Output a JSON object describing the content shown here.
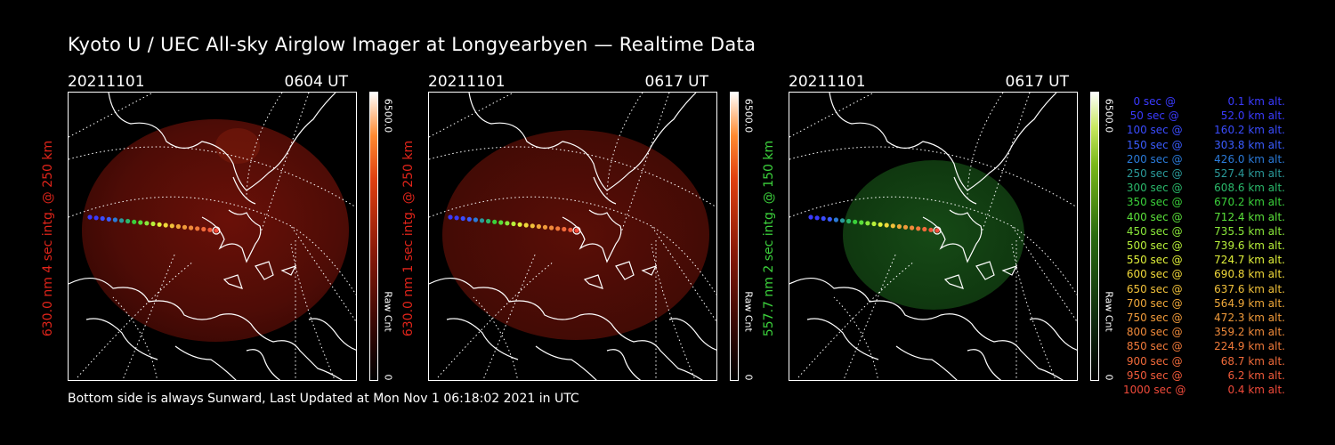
{
  "title": "Kyoto U / UEC All-sky Airglow Imager at Longyearbyen — Realtime Data",
  "footer": "Bottom side is always Sunward, Last Updated at Mon Nov  1 06:18:02 2021 in UTC",
  "colors": {
    "red_label": "#e0241a",
    "green_label": "#3cd23c"
  },
  "panels": [
    {
      "date": "20211101",
      "time": "0604 UT",
      "ylabel": "630.0 nm 4 sec intg. @ 250 km",
      "cb_max": "6500.0",
      "cb_unit": "Raw Cnt",
      "cb_min": "0",
      "channel": "red"
    },
    {
      "date": "20211101",
      "time": "0617 UT",
      "ylabel": "630.0 nm 1 sec intg. @ 250 km",
      "cb_max": "6500.0",
      "cb_unit": "Raw Cnt",
      "cb_min": "0",
      "channel": "red"
    },
    {
      "date": "20211101",
      "time": "0617 UT",
      "ylabel": "557.7 nm 2 sec intg. @ 150 km",
      "cb_max": "6500.0",
      "cb_unit": "Raw Cnt",
      "cb_min": "0",
      "channel": "green"
    }
  ],
  "legend": [
    {
      "t": "   0 sec @",
      "alt": "  0.1 km alt.",
      "color": "#3a3aff"
    },
    {
      "t": "  50 sec @",
      "alt": " 52.0 km alt.",
      "color": "#3a3aff"
    },
    {
      "t": " 100 sec @",
      "alt": "160.2 km alt.",
      "color": "#3a4cff"
    },
    {
      "t": " 150 sec @",
      "alt": "303.8 km alt.",
      "color": "#3a5cff"
    },
    {
      "t": " 200 sec @",
      "alt": "426.0 km alt.",
      "color": "#2a7ad8"
    },
    {
      "t": " 250 sec @",
      "alt": "527.4 km alt.",
      "color": "#2a9a9a"
    },
    {
      "t": " 300 sec @",
      "alt": "608.6 km alt.",
      "color": "#2ab86a"
    },
    {
      "t": " 350 sec @",
      "alt": "670.2 km alt.",
      "color": "#3ad03a"
    },
    {
      "t": " 400 sec @",
      "alt": "712.4 km alt.",
      "color": "#5ae03a"
    },
    {
      "t": " 450 sec @",
      "alt": "735.5 km alt.",
      "color": "#8ae83a"
    },
    {
      "t": " 500 sec @",
      "alt": "739.6 km alt.",
      "color": "#b8f03a"
    },
    {
      "t": " 550 sec @",
      "alt": "724.7 km alt.",
      "color": "#e0f03a"
    },
    {
      "t": " 600 sec @",
      "alt": "690.8 km alt.",
      "color": "#f0d83a"
    },
    {
      "t": " 650 sec @",
      "alt": "637.6 km alt.",
      "color": "#f0c03a"
    },
    {
      "t": " 700 sec @",
      "alt": "564.9 km alt.",
      "color": "#f0a83a"
    },
    {
      "t": " 750 sec @",
      "alt": "472.3 km alt.",
      "color": "#f09a3a"
    },
    {
      "t": " 800 sec @",
      "alt": "359.2 km alt.",
      "color": "#f08a3a"
    },
    {
      "t": " 850 sec @",
      "alt": "224.9 km alt.",
      "color": "#f07a3a"
    },
    {
      "t": " 900 sec @",
      "alt": " 68.7 km alt.",
      "color": "#f06a3a"
    },
    {
      "t": " 950 sec @",
      "alt": "  6.2 km alt.",
      "color": "#f05a3a"
    },
    {
      "t": "1000 sec @",
      "alt": "  0.4 km alt.",
      "color": "#f04a3a"
    }
  ]
}
